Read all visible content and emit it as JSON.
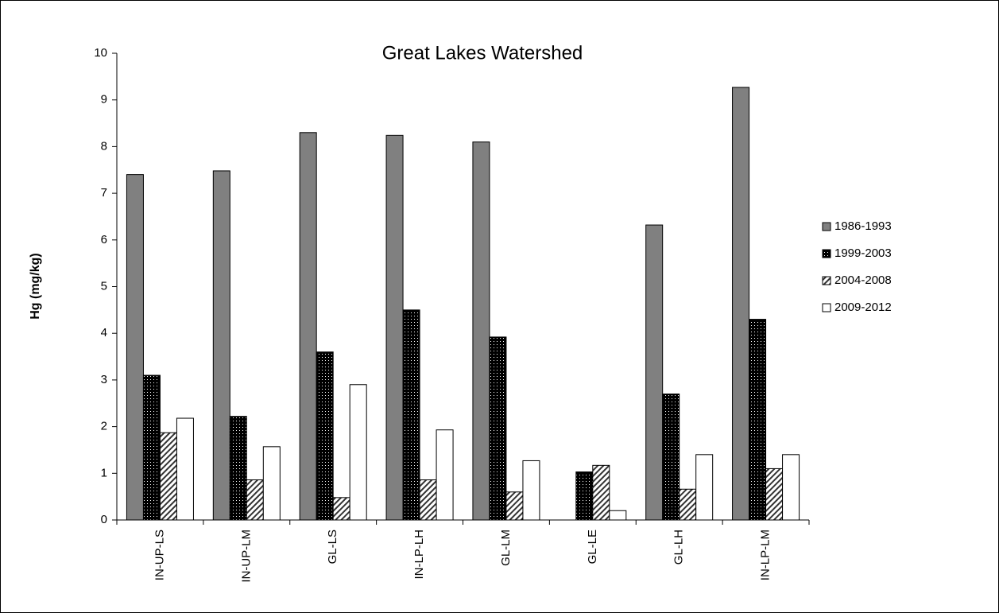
{
  "chart_data": {
    "type": "bar",
    "title": "Great Lakes Watershed",
    "y_label": "Hg (mg/kg)",
    "categories": [
      "IN-UP-LS",
      "IN-UP-LM",
      "GL-LS",
      "IN-LP-LH",
      "GL-LM",
      "GL-LE",
      "GL-LH",
      "IN-LP-LM"
    ],
    "series": [
      {
        "name": "1986-1993",
        "color": "#808080",
        "values": [
          7.4,
          7.48,
          8.3,
          8.24,
          8.1,
          null,
          6.32,
          9.27
        ]
      },
      {
        "name": "1999-2003",
        "color": "#000000",
        "values": [
          3.1,
          2.22,
          3.6,
          4.5,
          3.92,
          1.03,
          2.7,
          4.3
        ]
      },
      {
        "name": "2004-2008",
        "color": "#9a9a9a",
        "values": [
          1.87,
          0.86,
          0.48,
          0.86,
          0.6,
          1.17,
          0.66,
          1.1
        ]
      },
      {
        "name": "2009-2012",
        "color": "#ffffff",
        "values": [
          2.18,
          1.57,
          2.9,
          1.93,
          1.27,
          0.2,
          1.4,
          1.4
        ]
      }
    ],
    "ylim": [
      0,
      10
    ],
    "yticks": [
      0,
      1,
      2,
      3,
      4,
      5,
      6,
      7,
      8,
      9,
      10
    ],
    "grid": false,
    "legend": "right"
  }
}
